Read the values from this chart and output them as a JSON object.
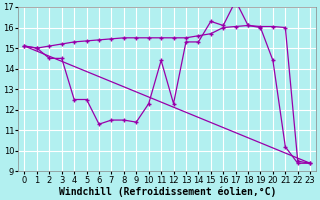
{
  "line1_x": [
    0,
    1,
    2,
    3,
    4,
    5,
    6,
    7,
    8,
    9,
    10,
    11,
    12,
    13,
    14,
    15,
    16,
    17,
    18,
    19,
    20,
    21,
    22,
    23
  ],
  "line1_y": [
    15.1,
    15.0,
    14.5,
    14.5,
    12.5,
    12.5,
    11.3,
    11.5,
    11.5,
    11.4,
    12.3,
    14.4,
    12.3,
    15.3,
    15.3,
    16.3,
    16.1,
    17.3,
    16.1,
    16.0,
    14.4,
    10.2,
    9.4,
    9.4
  ],
  "line2_x": [
    0,
    1,
    2,
    3,
    4,
    5,
    6,
    7,
    8,
    9,
    10,
    11,
    12,
    13,
    14,
    15,
    16,
    17,
    18,
    19,
    20,
    21,
    22,
    23
  ],
  "line2_y": [
    15.1,
    15.0,
    15.1,
    15.2,
    15.3,
    15.35,
    15.4,
    15.45,
    15.5,
    15.5,
    15.5,
    15.5,
    15.5,
    15.5,
    15.6,
    15.7,
    16.0,
    16.05,
    16.1,
    16.05,
    16.05,
    16.0,
    9.5,
    9.4
  ],
  "line3_x": [
    0,
    23
  ],
  "line3_y": [
    15.1,
    9.4
  ],
  "line_color": "#9900aa",
  "bg_color": "#b2f0f0",
  "grid_color": "#ffffff",
  "xlabel": "Windchill (Refroidissement éolien,°C)",
  "xlim": [
    -0.5,
    23.5
  ],
  "ylim": [
    9,
    17
  ],
  "xticks": [
    0,
    1,
    2,
    3,
    4,
    5,
    6,
    7,
    8,
    9,
    10,
    11,
    12,
    13,
    14,
    15,
    16,
    17,
    18,
    19,
    20,
    21,
    22,
    23
  ],
  "yticks": [
    9,
    10,
    11,
    12,
    13,
    14,
    15,
    16,
    17
  ],
  "xlabel_fontsize": 7,
  "tick_fontsize": 6.0,
  "marker": "+",
  "marker_size": 3.5,
  "line_width": 0.9
}
